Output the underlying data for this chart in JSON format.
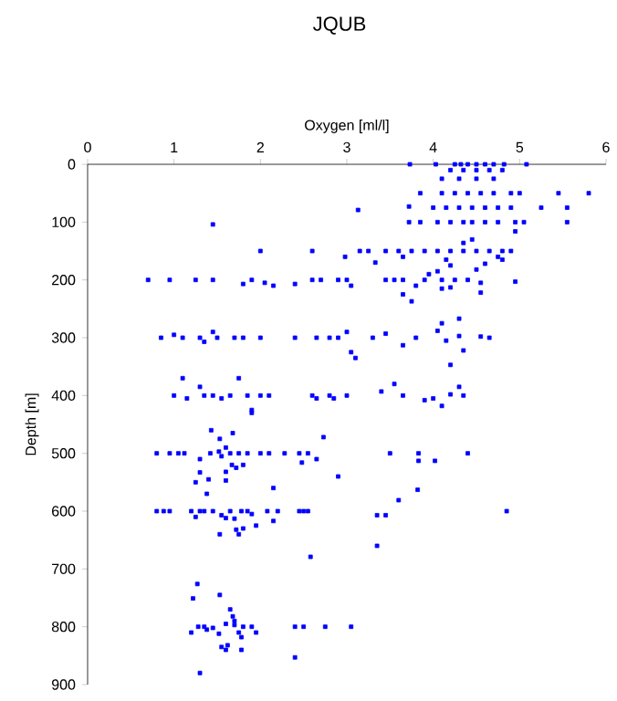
{
  "chart_data": {
    "type": "scatter",
    "title": "JQUB",
    "xlabel": "Oxygen [ml/l]",
    "ylabel": "Depth [m]",
    "xlim": [
      0,
      6
    ],
    "xticks": [
      0,
      1,
      2,
      3,
      4,
      5,
      6
    ],
    "ylim": [
      900,
      0
    ],
    "yticks": [
      0,
      100,
      200,
      300,
      400,
      500,
      600,
      700,
      800,
      900
    ],
    "marker": "square",
    "series": [
      {
        "color": "#0000ff",
        "x": [
          3.73,
          4.03,
          4.25,
          4.32,
          4.4,
          4.5,
          4.6,
          4.7,
          4.82,
          5.08,
          4.2,
          4.35,
          4.5,
          4.65,
          4.8,
          4.1,
          4.3,
          4.5,
          4.7,
          3.85,
          4.1,
          4.25,
          4.4,
          4.55,
          4.7,
          4.9,
          5.0,
          5.45,
          5.8,
          3.13,
          3.72,
          4.0,
          4.15,
          4.3,
          4.45,
          4.6,
          4.75,
          4.9,
          5.25,
          5.55,
          1.45,
          3.72,
          3.85,
          4.05,
          4.2,
          4.35,
          4.45,
          4.6,
          4.75,
          4.95,
          5.05,
          5.55,
          4.95,
          4.45,
          4.35,
          2.0,
          2.6,
          3.15,
          3.25,
          3.45,
          3.6,
          3.75,
          3.9,
          4.05,
          4.2,
          4.35,
          4.5,
          4.65,
          4.8,
          4.9,
          2.98,
          3.33,
          3.65,
          4.15,
          4.2,
          4.5,
          4.6,
          4.75,
          4.8,
          0.7,
          0.95,
          1.25,
          1.45,
          1.8,
          1.9,
          2.05,
          2.15,
          2.4,
          2.6,
          2.7,
          2.9,
          3.0,
          3.05,
          3.45,
          3.55,
          3.65,
          3.9,
          4.1,
          4.25,
          4.4,
          4.55,
          4.95,
          3.8,
          3.95,
          4.05,
          4.1,
          4.2,
          3.65,
          3.75,
          4.55,
          0.85,
          1.0,
          1.1,
          1.3,
          1.35,
          1.45,
          1.5,
          1.7,
          1.8,
          2.0,
          2.4,
          2.65,
          2.8,
          2.9,
          3.0,
          3.05,
          3.1,
          3.3,
          3.45,
          3.65,
          3.8,
          4.05,
          4.1,
          4.15,
          4.3,
          4.35,
          4.3,
          4.55,
          4.65,
          4.2,
          1.0,
          1.1,
          1.15,
          1.3,
          1.35,
          1.45,
          1.55,
          1.65,
          1.75,
          1.85,
          1.9,
          2.0,
          2.1,
          2.6,
          2.65,
          2.8,
          2.85,
          3.0,
          3.4,
          3.55,
          3.65,
          3.9,
          4.0,
          4.1,
          4.2,
          4.3,
          4.35,
          1.9,
          1.43,
          1.68,
          1.53,
          2.73,
          0.8,
          0.95,
          1.05,
          1.12,
          1.3,
          1.42,
          1.55,
          1.65,
          1.75,
          1.85,
          2.0,
          2.1,
          2.28,
          2.45,
          2.55,
          2.48,
          2.65,
          3.5,
          3.83,
          3.83,
          4.02,
          4.4,
          1.52,
          1.6,
          1.3,
          1.25,
          1.4,
          1.6,
          1.6,
          1.67,
          1.72,
          1.8,
          1.38,
          2.15,
          2.9,
          3.6,
          3.82,
          0.8,
          0.88,
          0.95,
          1.2,
          1.25,
          1.3,
          1.35,
          1.45,
          1.55,
          1.6,
          1.65,
          1.7,
          1.78,
          1.85,
          1.9,
          1.95,
          1.72,
          1.8,
          2.08,
          2.15,
          2.2,
          2.45,
          2.5,
          2.55,
          3.35,
          3.45,
          4.85,
          1.53,
          1.75,
          3.35,
          2.58,
          1.27,
          1.22,
          1.53,
          1.65,
          1.68,
          1.7,
          1.6,
          1.7,
          1.2,
          1.38,
          1.45,
          1.35,
          1.28,
          1.52,
          1.75,
          1.78,
          1.8,
          1.9,
          1.95,
          2.4,
          2.5,
          2.75,
          3.05,
          1.55,
          1.62,
          1.6,
          1.78,
          1.3,
          2.4
        ],
        "values": [
          0,
          0,
          0,
          0,
          0,
          0,
          0,
          0,
          0,
          0,
          10,
          10,
          10,
          10,
          10,
          25,
          25,
          25,
          25,
          50,
          50,
          50,
          50,
          50,
          50,
          50,
          50,
          50,
          50,
          79,
          73,
          75,
          75,
          75,
          75,
          75,
          75,
          75,
          75,
          75,
          104,
          100,
          100,
          100,
          100,
          100,
          100,
          100,
          100,
          100,
          100,
          100,
          116,
          130,
          136,
          150,
          150,
          150,
          150,
          150,
          150,
          150,
          150,
          150,
          150,
          150,
          150,
          150,
          150,
          150,
          160,
          170,
          160,
          165,
          175,
          182,
          172,
          160,
          165,
          200,
          200,
          200,
          200,
          207,
          200,
          205,
          210,
          207,
          200,
          200,
          200,
          200,
          210,
          200,
          200,
          200,
          200,
          200,
          200,
          200,
          205,
          203,
          210,
          190,
          185,
          215,
          213,
          225,
          237,
          222,
          300,
          295,
          300,
          300,
          307,
          290,
          300,
          300,
          300,
          300,
          300,
          300,
          300,
          300,
          290,
          325,
          335,
          300,
          293,
          313,
          300,
          288,
          275,
          305,
          267,
          322,
          297,
          298,
          300,
          347,
          400,
          370,
          405,
          385,
          400,
          400,
          405,
          400,
          370,
          400,
          425,
          400,
          400,
          400,
          405,
          400,
          405,
          400,
          393,
          380,
          400,
          408,
          405,
          418,
          398,
          385,
          400,
          430,
          460,
          465,
          475,
          472,
          500,
          500,
          500,
          500,
          510,
          500,
          505,
          500,
          500,
          500,
          500,
          500,
          500,
          500,
          500,
          516,
          510,
          500,
          500,
          513,
          513,
          500,
          497,
          490,
          533,
          550,
          545,
          547,
          532,
          520,
          525,
          520,
          570,
          560,
          540,
          581,
          563,
          600,
          600,
          600,
          600,
          610,
          600,
          600,
          600,
          607,
          612,
          600,
          613,
          600,
          600,
          605,
          625,
          632,
          630,
          600,
          617,
          600,
          600,
          600,
          600,
          607,
          607,
          600,
          640,
          640,
          660,
          679,
          726,
          751,
          745,
          770,
          782,
          790,
          795,
          797,
          810,
          805,
          802,
          800,
          800,
          812,
          810,
          818,
          800,
          800,
          810,
          800,
          800,
          800,
          800,
          835,
          832,
          840,
          840,
          880,
          853
        ]
      }
    ]
  }
}
